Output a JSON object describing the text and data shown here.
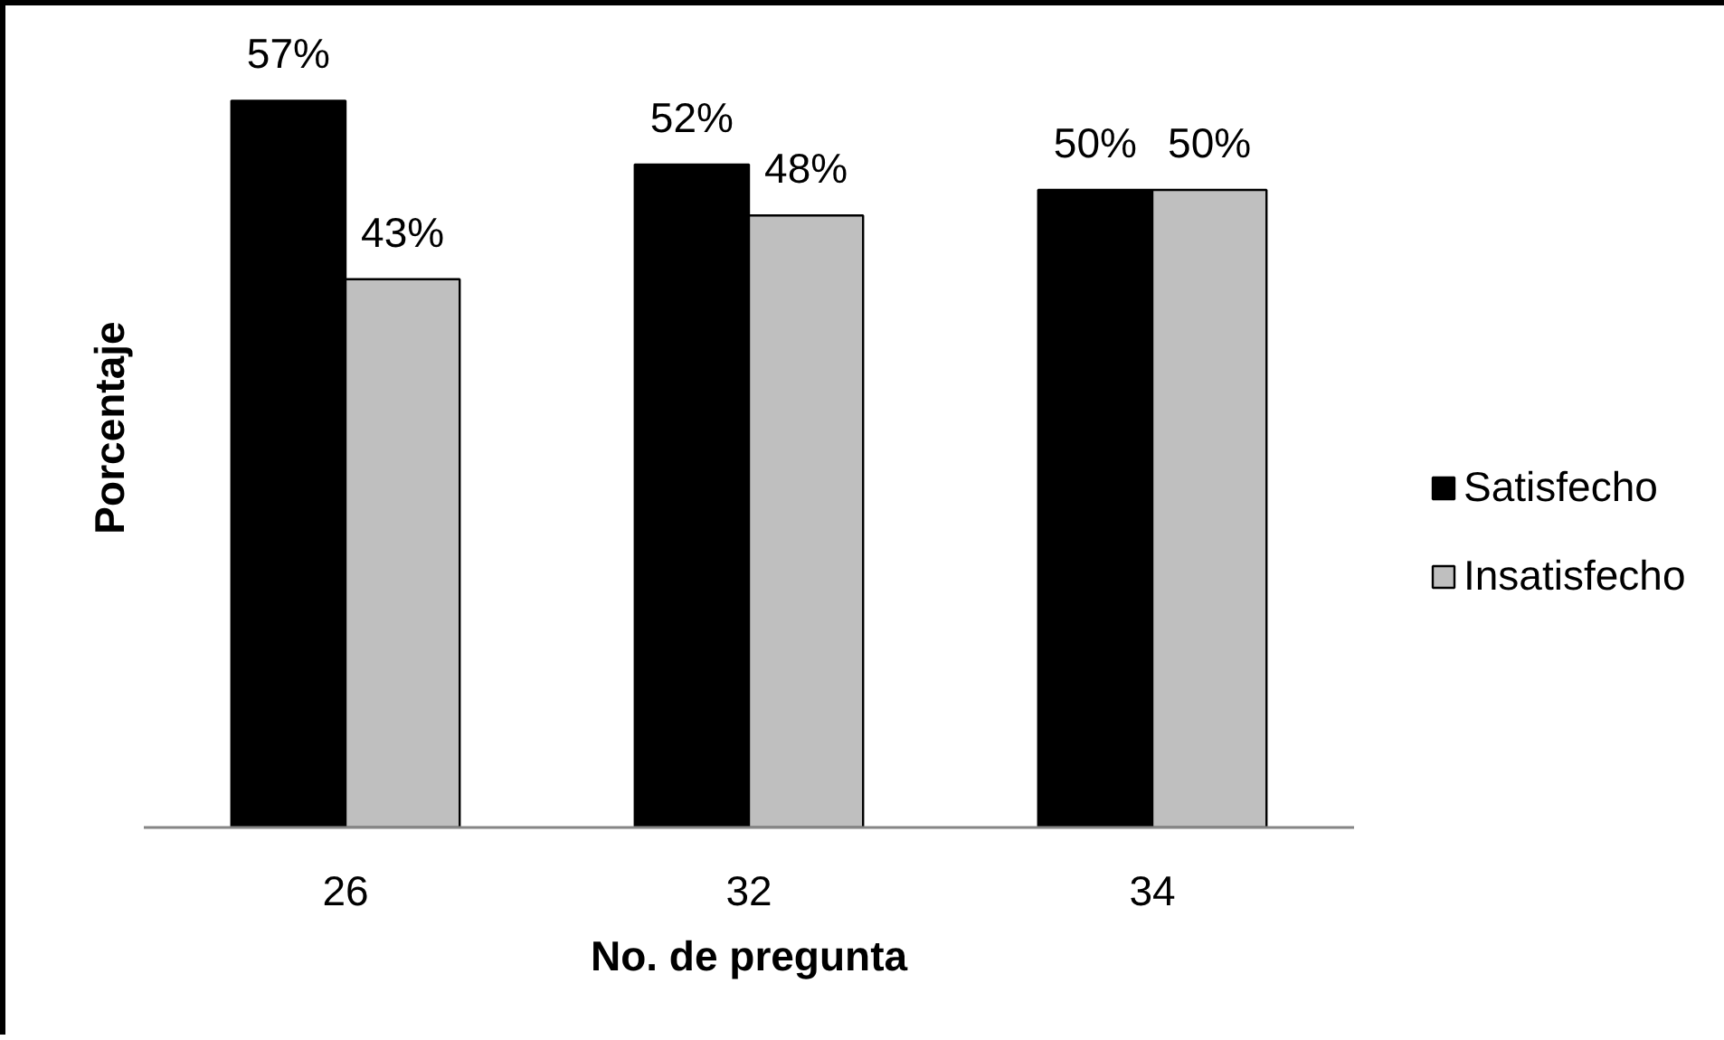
{
  "chart_data": {
    "type": "bar",
    "xlabel": "No. de pregunta",
    "ylabel": "Porcentaje",
    "categories": [
      "26",
      "32",
      "34"
    ],
    "series": [
      {
        "name": "Satisfecho",
        "color": "#000000",
        "values": [
          57,
          52,
          50
        ],
        "value_labels": [
          "57%",
          "52%",
          "50%"
        ]
      },
      {
        "name": "Insatisfecho",
        "color": "#bfbfbf",
        "values": [
          43,
          48,
          50
        ],
        "value_labels": [
          "43%",
          "48%",
          "50%"
        ]
      }
    ],
    "tick_labels": "x",
    "legend": "right"
  }
}
